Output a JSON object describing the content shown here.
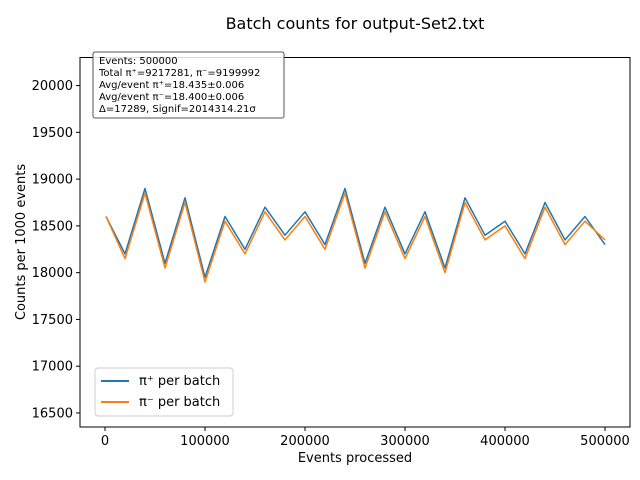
{
  "chart_data": {
    "type": "line",
    "title": "Batch counts for output-Set2.txt",
    "xlabel": "Events processed",
    "ylabel": "Counts per 1000 events",
    "xlim": [
      -25000,
      525000
    ],
    "ylim": [
      16350,
      20300
    ],
    "xticks": [
      0,
      100000,
      200000,
      300000,
      400000,
      500000
    ],
    "yticks": [
      16500,
      17000,
      17500,
      18000,
      18500,
      19000,
      19500,
      20000
    ],
    "legend_position": "lower-left",
    "stats_box": [
      "Events: 500000",
      "Total π⁺=9217281, π⁻=9199992",
      "Avg/event π⁺=18.435±0.006",
      "Avg/event π⁻=18.400±0.006",
      "Δ=17289, Signif=2014314.21σ"
    ],
    "series": [
      {
        "name": "π⁺ per batch",
        "color": "#1f77b4",
        "x": [
          1000,
          20000,
          40000,
          60000,
          80000,
          100000,
          120000,
          140000,
          160000,
          180000,
          200000,
          220000,
          240000,
          260000,
          280000,
          300000,
          320000,
          340000,
          360000,
          380000,
          400000,
          420000,
          440000,
          460000,
          480000,
          500000
        ],
        "values": [
          18600,
          18200,
          18900,
          18100,
          18800,
          17950,
          18600,
          18250,
          18700,
          18400,
          18650,
          18300,
          18900,
          18100,
          18700,
          18200,
          18650,
          18050,
          18800,
          18400,
          18550,
          18200,
          18750,
          18350,
          18600,
          18300
        ]
      },
      {
        "name": "π⁻ per batch",
        "color": "#ff7f0e",
        "x": [
          1000,
          20000,
          40000,
          60000,
          80000,
          100000,
          120000,
          140000,
          160000,
          180000,
          200000,
          220000,
          240000,
          260000,
          280000,
          300000,
          320000,
          340000,
          360000,
          380000,
          400000,
          420000,
          440000,
          460000,
          480000,
          500000
        ],
        "values": [
          18600,
          18150,
          18850,
          18050,
          18750,
          17900,
          18550,
          18200,
          18650,
          18350,
          18600,
          18250,
          18850,
          18050,
          18650,
          18150,
          18600,
          18000,
          18750,
          18350,
          18500,
          18150,
          18700,
          18300,
          18550,
          18350
        ]
      }
    ]
  }
}
